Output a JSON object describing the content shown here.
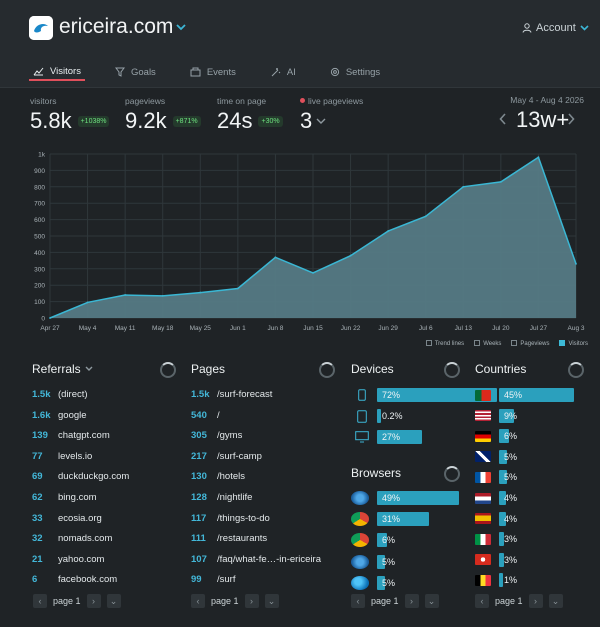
{
  "header": {
    "site_name": "ericeira.com",
    "account_label": "Account",
    "tabs": [
      {
        "label": "Visitors",
        "icon": "visitors-icon"
      },
      {
        "label": "Goals",
        "icon": "funnel-icon"
      },
      {
        "label": "Events",
        "icon": "events-icon"
      },
      {
        "label": "AI",
        "icon": "sparkle-icon"
      },
      {
        "label": "Settings",
        "icon": "gear-icon"
      }
    ]
  },
  "stats": {
    "visitors": {
      "label": "visitors",
      "value": "5.8k",
      "change": "+1038%"
    },
    "pageviews": {
      "label": "pageviews",
      "value": "9.2k",
      "change": "+871%"
    },
    "time_on_page": {
      "label": "time on page",
      "value": "24s",
      "change": "+30%"
    },
    "live": {
      "label": "live pageviews",
      "value": "3"
    },
    "range": {
      "label": "May 4 - Aug 4 2026",
      "value": "13w+"
    }
  },
  "chart_data": {
    "type": "area",
    "title": "",
    "x": [
      "Apr 27",
      "May 4",
      "May 11",
      "May 18",
      "May 25",
      "Jun 1",
      "Jun 8",
      "Jun 15",
      "Jun 22",
      "Jun 29",
      "Jul 6",
      "Jul 13",
      "Jul 20",
      "Jul 27",
      "Aug 3"
    ],
    "series": [
      {
        "name": "Visitors",
        "values": [
          0,
          95,
          140,
          135,
          155,
          180,
          370,
          275,
          380,
          530,
          620,
          800,
          830,
          980,
          330
        ]
      }
    ],
    "yticks": [
      "0",
      "100",
      "200",
      "300",
      "400",
      "500",
      "600",
      "700",
      "800",
      "900",
      "1k"
    ],
    "ylim": [
      0,
      1000
    ],
    "grid": true,
    "legend": [
      "Trend lines",
      "Weeks",
      "Pageviews",
      "Visitors"
    ],
    "legend_checked": [
      false,
      false,
      false,
      true
    ],
    "legend_placement": "bottom-right",
    "colors": {
      "fill": "#557a84",
      "line": "#3ab7d4"
    }
  },
  "referrals": {
    "title": "Referrals",
    "rows": [
      {
        "count": "1.5k",
        "name": "(direct)"
      },
      {
        "count": "1.6k",
        "name": "google"
      },
      {
        "count": "139",
        "name": "chatgpt.com"
      },
      {
        "count": "77",
        "name": "levels.io"
      },
      {
        "count": "69",
        "name": "duckduckgo.com"
      },
      {
        "count": "62",
        "name": "bing.com"
      },
      {
        "count": "33",
        "name": "ecosia.org"
      },
      {
        "count": "32",
        "name": "nomads.com"
      },
      {
        "count": "21",
        "name": "yahoo.com"
      },
      {
        "count": "6",
        "name": "facebook.com"
      }
    ],
    "page": "page 1"
  },
  "pages": {
    "title": "Pages",
    "rows": [
      {
        "count": "1.5k",
        "name": "/surf-forecast"
      },
      {
        "count": "540",
        "name": "/"
      },
      {
        "count": "305",
        "name": "/gyms"
      },
      {
        "count": "217",
        "name": "/surf-camp"
      },
      {
        "count": "130",
        "name": "/hotels"
      },
      {
        "count": "128",
        "name": "/nightlife"
      },
      {
        "count": "117",
        "name": "/things-to-do"
      },
      {
        "count": "111",
        "name": "/restaurants"
      },
      {
        "count": "107",
        "name": "/faq/what-fe…-in-ericeira"
      },
      {
        "count": "99",
        "name": "/surf"
      }
    ],
    "page": "page 1"
  },
  "devices": {
    "title": "Devices",
    "rows": [
      {
        "icon": "phone-icon",
        "label": "72%",
        "fraction": 0.72
      },
      {
        "icon": "tablet-icon",
        "label": "0.2%",
        "fraction": 0.002
      },
      {
        "icon": "monitor-icon",
        "label": "27%",
        "fraction": 0.27
      }
    ]
  },
  "browsers": {
    "title": "Browsers",
    "rows": [
      {
        "icon": "safari-icon",
        "label": "49%",
        "fraction": 0.49
      },
      {
        "icon": "chrome-icon",
        "label": "31%",
        "fraction": 0.31
      },
      {
        "icon": "chrome-mobile-icon",
        "label": "6%",
        "fraction": 0.06
      },
      {
        "icon": "safari-mobile-icon",
        "label": "5%",
        "fraction": 0.05
      },
      {
        "icon": "edge-icon",
        "label": "5%",
        "fraction": 0.05
      }
    ],
    "page": "page 1"
  },
  "countries": {
    "title": "Countries",
    "rows": [
      {
        "flag": "portugal-flag-icon",
        "label": "45%",
        "fraction": 0.45
      },
      {
        "flag": "usa-flag-icon",
        "label": "9%",
        "fraction": 0.09
      },
      {
        "flag": "germany-flag-icon",
        "label": "6%",
        "fraction": 0.06
      },
      {
        "flag": "uk-flag-icon",
        "label": "5%",
        "fraction": 0.05
      },
      {
        "flag": "france-flag-icon",
        "label": "5%",
        "fraction": 0.05
      },
      {
        "flag": "netherlands-flag-icon",
        "label": "4%",
        "fraction": 0.04
      },
      {
        "flag": "spain-flag-icon",
        "label": "4%",
        "fraction": 0.04
      },
      {
        "flag": "italy-flag-icon",
        "label": "3%",
        "fraction": 0.03
      },
      {
        "flag": "switzerland-flag-icon",
        "label": "3%",
        "fraction": 0.03
      },
      {
        "flag": "belgium-flag-icon",
        "label": "1%",
        "fraction": 0.01
      }
    ],
    "page": "page 1"
  },
  "colors": {
    "accent": "#43b7d8",
    "bar": "#2ba0bd",
    "tab_underline": "#e0505c",
    "positive": "#6ee27f"
  }
}
